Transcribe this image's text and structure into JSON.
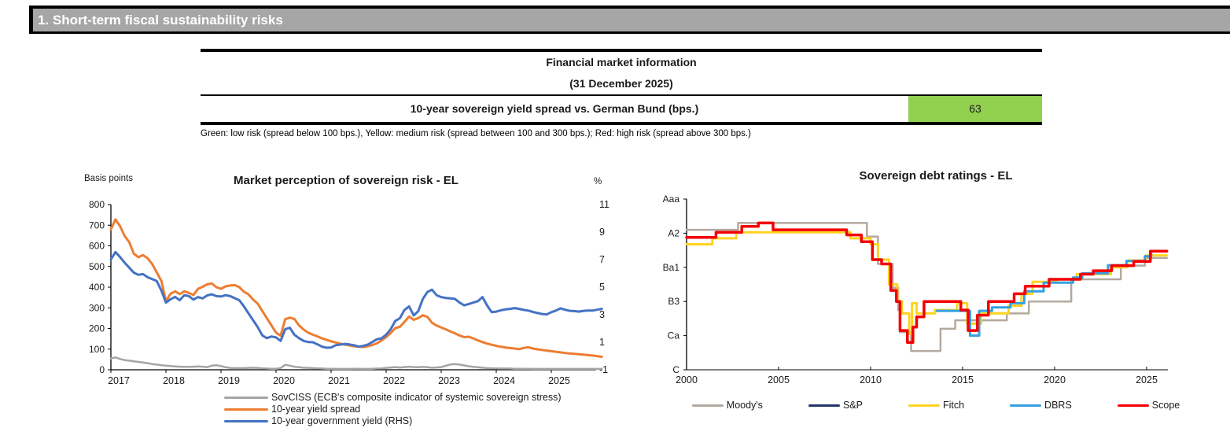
{
  "page": {
    "title_bar": "1. Short-term fiscal sustainability risks"
  },
  "info_table": {
    "header_line1": "Financial market information",
    "header_line2": "(31 December 2025)",
    "row_label": "10-year sovereign yield spread vs. German Bund (bps.)",
    "row_value": "63",
    "value_bg": "#92d050",
    "footnote": "Green: low risk (spread below 100 bps.), Yellow: medium risk (spread between 100 and 300 bps.); Red: high risk (spread above 300 bps.)"
  },
  "chart_data": [
    {
      "id": "market-perception",
      "type": "line",
      "title": "Market perception of sovereign risk - EL",
      "left_axis_label": "Basis points",
      "right_axis_label": "%",
      "x_ticks": [
        2017,
        2018,
        2019,
        2020,
        2021,
        2022,
        2023,
        2024,
        2025
      ],
      "x_range": [
        2017,
        2025.8
      ],
      "left_ylim": [
        0,
        800
      ],
      "left_tick_step": 100,
      "right_ylim": [
        -1,
        11
      ],
      "right_tick_step": 2,
      "grid": false,
      "legend_position": "bottom-left",
      "frequency": "monthly",
      "start_year": 2017,
      "series": [
        {
          "name": "SovCISS (ECB's composite indicator of systemic sovereign stress)",
          "axis": "left",
          "color": "#a5a5a5",
          "width": 2.5,
          "values": [
            55,
            60,
            52,
            47,
            44,
            41,
            38,
            35,
            32,
            28,
            25,
            22,
            20,
            18,
            16,
            15,
            14,
            14,
            15,
            16,
            15,
            13,
            20,
            22,
            18,
            12,
            9,
            8,
            8,
            8,
            9,
            10,
            9,
            7,
            6,
            5,
            5,
            8,
            24,
            20,
            15,
            12,
            10,
            9,
            8,
            7,
            6,
            5,
            5,
            4,
            4,
            4,
            4,
            5,
            5,
            4,
            4,
            5,
            6,
            7,
            9,
            11,
            13,
            11,
            13,
            15,
            13,
            12,
            14,
            12,
            10,
            11,
            13,
            19,
            26,
            28,
            25,
            21,
            17,
            14,
            12,
            10,
            8,
            7,
            7,
            6,
            6,
            6,
            5,
            5,
            5,
            5,
            4,
            4,
            4,
            4,
            4,
            4,
            4,
            4,
            4,
            4,
            4,
            4,
            4,
            4,
            4,
            4
          ]
        },
        {
          "name": "10-year yield spread",
          "axis": "left",
          "color": "#ed7d31",
          "width": 3,
          "values": [
            680,
            728,
            695,
            648,
            618,
            562,
            545,
            555,
            540,
            512,
            472,
            430,
            332,
            368,
            380,
            366,
            380,
            372,
            362,
            392,
            402,
            414,
            418,
            400,
            392,
            404,
            408,
            410,
            400,
            378,
            365,
            340,
            320,
            285,
            250,
            215,
            180,
            165,
            245,
            252,
            246,
            215,
            195,
            180,
            170,
            162,
            152,
            145,
            138,
            132,
            126,
            122,
            118,
            114,
            112,
            110,
            114,
            120,
            128,
            142,
            158,
            178,
            202,
            208,
            232,
            258,
            242,
            250,
            264,
            256,
            228,
            214,
            205,
            196,
            186,
            176,
            166,
            158,
            160,
            152,
            142,
            134,
            127,
            121,
            116,
            112,
            108,
            105,
            103,
            100,
            106,
            109,
            103,
            99,
            96,
            93,
            90,
            87,
            84,
            81,
            79,
            77,
            75,
            73,
            71,
            69,
            66,
            63
          ]
        },
        {
          "name": "10-year government yield (RHS)",
          "axis": "right",
          "color": "#4472c4",
          "width": 3,
          "values": [
            7.02,
            7.55,
            7.18,
            6.78,
            6.42,
            6.05,
            5.9,
            5.95,
            5.72,
            5.58,
            5.45,
            4.75,
            3.88,
            4.12,
            4.3,
            4.05,
            4.42,
            4.35,
            4.1,
            4.28,
            4.18,
            4.4,
            4.48,
            4.35,
            4.32,
            4.42,
            4.35,
            4.2,
            4.05,
            3.6,
            3.1,
            2.6,
            2.1,
            1.5,
            1.3,
            1.42,
            1.35,
            1.1,
            1.95,
            2.05,
            1.55,
            1.3,
            1.1,
            1.02,
            1.0,
            0.85,
            0.68,
            0.6,
            0.62,
            0.78,
            0.83,
            0.88,
            0.84,
            0.78,
            0.68,
            0.73,
            0.83,
            1.02,
            1.22,
            1.28,
            1.55,
            1.95,
            2.55,
            2.75,
            3.35,
            3.6,
            2.95,
            3.25,
            4.15,
            4.65,
            4.82,
            4.42,
            4.28,
            4.22,
            4.18,
            4.15,
            3.88,
            3.68,
            3.78,
            3.88,
            3.98,
            4.28,
            3.68,
            3.18,
            3.22,
            3.32,
            3.38,
            3.42,
            3.48,
            3.42,
            3.35,
            3.3,
            3.2,
            3.12,
            3.05,
            3.02,
            3.18,
            3.3,
            3.46,
            3.36,
            3.28,
            3.26,
            3.22,
            3.28,
            3.3,
            3.3,
            3.36,
            3.42
          ]
        }
      ]
    },
    {
      "id": "sovereign-ratings",
      "type": "step-line",
      "title": "Sovereign debt ratings - EL",
      "x_ticks": [
        2000,
        2005,
        2010,
        2015,
        2020,
        2025
      ],
      "x_range": [
        2000,
        2026.1
      ],
      "y_tick_labels": [
        "C",
        "Ca",
        "B3",
        "Ba1",
        "A2",
        "Aaa"
      ],
      "y_tick_values": [
        0,
        4,
        8,
        12,
        16,
        20
      ],
      "rating_scale": {
        "C": 0,
        "Ca": 4,
        "B3": 8,
        "Ba1": 12,
        "A2": 16,
        "Aaa": 20
      },
      "grid": false,
      "legend_position": "bottom",
      "series": [
        {
          "name": "Moody's",
          "color": "#b3a99e",
          "width": 2.5,
          "points": [
            [
              2000,
              16.4
            ],
            [
              2002.8,
              17.2
            ],
            [
              2009.8,
              15.6
            ],
            [
              2010.4,
              12.4
            ],
            [
              2011.2,
              9.6
            ],
            [
              2011.5,
              7.0
            ],
            [
              2011.6,
              4.4
            ],
            [
              2012.2,
              2.2
            ],
            [
              2013.8,
              4.8
            ],
            [
              2014.6,
              5.8
            ],
            [
              2017.4,
              6.6
            ],
            [
              2018.6,
              8.0
            ],
            [
              2020.9,
              10.6
            ],
            [
              2023.6,
              12.2
            ],
            [
              2024.9,
              13.1
            ],
            [
              2026.1,
              13.1
            ]
          ]
        },
        {
          "name": "S&P",
          "color": "#203864",
          "width": 2.5,
          "points": [
            [
              2000,
              15.5
            ],
            [
              2001.6,
              16.1
            ],
            [
              2003.0,
              16.8
            ],
            [
              2003.9,
              17.2
            ],
            [
              2004.7,
              16.4
            ],
            [
              2008.7,
              15.8
            ],
            [
              2009.5,
              15.0
            ],
            [
              2010.1,
              12.9
            ],
            [
              2010.6,
              12.4
            ],
            [
              2011.1,
              9.3
            ],
            [
              2011.4,
              8.0
            ],
            [
              2011.6,
              4.6
            ],
            [
              2012.0,
              3.2
            ],
            [
              2012.3,
              5.0
            ],
            [
              2012.5,
              6.2
            ],
            [
              2012.9,
              8.0
            ],
            [
              2014.9,
              7.0
            ],
            [
              2015.3,
              4.6
            ],
            [
              2015.8,
              6.4
            ],
            [
              2016.4,
              8.0
            ],
            [
              2017.8,
              8.9
            ],
            [
              2018.4,
              9.8
            ],
            [
              2019.7,
              10.6
            ],
            [
              2021.4,
              11.2
            ],
            [
              2022.1,
              11.6
            ],
            [
              2023.1,
              12.2
            ],
            [
              2024.3,
              12.7
            ],
            [
              2025.2,
              13.9
            ],
            [
              2026.1,
              13.9
            ]
          ]
        },
        {
          "name": "Fitch",
          "color": "#ffd320",
          "width": 3,
          "points": [
            [
              2000,
              14.7
            ],
            [
              2001.4,
              15.4
            ],
            [
              2002.7,
              16.1
            ],
            [
              2008.9,
              15.4
            ],
            [
              2010.0,
              14.7
            ],
            [
              2010.4,
              12.9
            ],
            [
              2011.0,
              10.0
            ],
            [
              2011.45,
              8.0
            ],
            [
              2011.7,
              6.6
            ],
            [
              2012.1,
              4.2
            ],
            [
              2012.25,
              7.8
            ],
            [
              2012.5,
              6.6
            ],
            [
              2013.5,
              7.0
            ],
            [
              2014.7,
              7.8
            ],
            [
              2015.25,
              5.4
            ],
            [
              2016.0,
              6.6
            ],
            [
              2017.5,
              7.5
            ],
            [
              2018.2,
              8.9
            ],
            [
              2018.8,
              10.3
            ],
            [
              2020.1,
              10.6
            ],
            [
              2021.2,
              11.2
            ],
            [
              2023.05,
              12.0
            ],
            [
              2023.95,
              12.8
            ],
            [
              2024.95,
              13.4
            ],
            [
              2026.1,
              13.4
            ]
          ]
        },
        {
          "name": "DBRS",
          "color": "#35a0e0",
          "width": 3,
          "points": [
            [
              2013.6,
              6.9
            ],
            [
              2015.4,
              4.0
            ],
            [
              2015.9,
              6.9
            ],
            [
              2016.6,
              7.3
            ],
            [
              2017.6,
              7.8
            ],
            [
              2018.35,
              9.2
            ],
            [
              2019.4,
              10.2
            ],
            [
              2021.0,
              10.8
            ],
            [
              2021.5,
              11.3
            ],
            [
              2022.9,
              12.25
            ],
            [
              2023.9,
              12.75
            ],
            [
              2024.9,
              13.3
            ],
            [
              2025.25,
              13.9
            ],
            [
              2026.1,
              13.9
            ]
          ]
        },
        {
          "name": "Scope",
          "color": "#f40000",
          "width": 3.5,
          "points": [
            [
              2000,
              15.5
            ],
            [
              2001.6,
              16.1
            ],
            [
              2003.0,
              16.8
            ],
            [
              2003.9,
              17.2
            ],
            [
              2004.7,
              16.4
            ],
            [
              2008.7,
              15.8
            ],
            [
              2009.5,
              15.0
            ],
            [
              2010.1,
              12.9
            ],
            [
              2010.6,
              12.4
            ],
            [
              2011.1,
              9.3
            ],
            [
              2011.4,
              8.0
            ],
            [
              2011.6,
              4.6
            ],
            [
              2012.0,
              3.2
            ],
            [
              2012.3,
              5.0
            ],
            [
              2012.5,
              6.2
            ],
            [
              2012.9,
              8.0
            ],
            [
              2014.9,
              7.0
            ],
            [
              2015.3,
              4.6
            ],
            [
              2015.8,
              6.4
            ],
            [
              2016.4,
              8.0
            ],
            [
              2017.8,
              8.9
            ],
            [
              2018.4,
              9.8
            ],
            [
              2019.7,
              10.6
            ],
            [
              2021.4,
              11.2
            ],
            [
              2022.1,
              11.6
            ],
            [
              2023.1,
              12.2
            ],
            [
              2024.3,
              12.7
            ],
            [
              2025.2,
              13.9
            ],
            [
              2026.1,
              13.9
            ]
          ]
        }
      ]
    }
  ]
}
